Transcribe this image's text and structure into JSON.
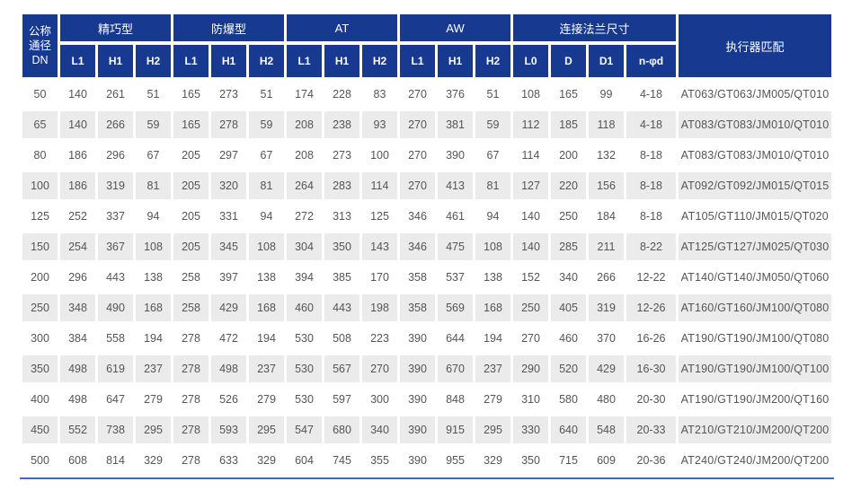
{
  "colors": {
    "header_bg": "#17398F",
    "header_text": "#FFFFFF",
    "stripe_bg": "#EBEBEB",
    "row_text": "#555555",
    "bottom_line": "#4468BD",
    "page_bg": "#FFFFFF"
  },
  "table": {
    "dn_header": "公称\n通径\nDN",
    "actuator_header": "执行器匹配",
    "groups": [
      {
        "label": "精巧型",
        "cols": [
          "L1",
          "H1",
          "H2"
        ]
      },
      {
        "label": "防爆型",
        "cols": [
          "L1",
          "H1",
          "H2"
        ]
      },
      {
        "label": "AT",
        "cols": [
          "L1",
          "H1",
          "H2"
        ]
      },
      {
        "label": "AW",
        "cols": [
          "L1",
          "H1",
          "H2"
        ]
      },
      {
        "label": "连接法兰尺寸",
        "cols": [
          "L0",
          "D",
          "D1",
          "n-φd"
        ]
      }
    ],
    "rows": [
      {
        "dn": "50",
        "values": [
          "140",
          "261",
          "51",
          "165",
          "273",
          "51",
          "174",
          "228",
          "83",
          "270",
          "376",
          "51",
          "108",
          "165",
          "99",
          "4-18"
        ],
        "actuator": "AT063/GT063/JM005/QT010"
      },
      {
        "dn": "65",
        "values": [
          "140",
          "266",
          "59",
          "165",
          "278",
          "59",
          "208",
          "238",
          "93",
          "270",
          "381",
          "59",
          "112",
          "185",
          "118",
          "4-18"
        ],
        "actuator": "AT083/GT083/JM010/QT010"
      },
      {
        "dn": "80",
        "values": [
          "186",
          "296",
          "67",
          "205",
          "297",
          "67",
          "208",
          "273",
          "100",
          "270",
          "390",
          "67",
          "114",
          "200",
          "132",
          "8-18"
        ],
        "actuator": "AT083/GT083/JM010/QT010"
      },
      {
        "dn": "100",
        "values": [
          "186",
          "319",
          "81",
          "205",
          "320",
          "81",
          "264",
          "283",
          "114",
          "270",
          "413",
          "81",
          "127",
          "220",
          "156",
          "8-18"
        ],
        "actuator": "AT092/GT092/JM015/QT015"
      },
      {
        "dn": "125",
        "values": [
          "252",
          "337",
          "94",
          "205",
          "331",
          "94",
          "272",
          "313",
          "125",
          "346",
          "461",
          "94",
          "140",
          "250",
          "184",
          "8-18"
        ],
        "actuator": "AT105/GT110/JM015/QT020"
      },
      {
        "dn": "150",
        "values": [
          "254",
          "367",
          "108",
          "205",
          "345",
          "108",
          "304",
          "350",
          "143",
          "346",
          "475",
          "108",
          "140",
          "285",
          "211",
          "8-22"
        ],
        "actuator": "AT125/GT127/JM025/QT030"
      },
      {
        "dn": "200",
        "values": [
          "296",
          "443",
          "138",
          "258",
          "397",
          "138",
          "394",
          "385",
          "170",
          "358",
          "537",
          "138",
          "152",
          "340",
          "266",
          "12-22"
        ],
        "actuator": "AT140/GT140/JM050/QT060"
      },
      {
        "dn": "250",
        "values": [
          "348",
          "490",
          "168",
          "258",
          "429",
          "168",
          "460",
          "443",
          "198",
          "358",
          "569",
          "168",
          "250",
          "405",
          "319",
          "12-26"
        ],
        "actuator": "AT160/GT160/JM100/QT080"
      },
      {
        "dn": "300",
        "values": [
          "384",
          "558",
          "194",
          "278",
          "472",
          "194",
          "530",
          "508",
          "223",
          "390",
          "644",
          "194",
          "270",
          "460",
          "370",
          "16-26"
        ],
        "actuator": "AT190/GT190/JM100/QT080"
      },
      {
        "dn": "350",
        "values": [
          "498",
          "619",
          "237",
          "278",
          "498",
          "237",
          "530",
          "567",
          "270",
          "390",
          "670",
          "237",
          "290",
          "520",
          "429",
          "16-30"
        ],
        "actuator": "AT190/GT190/JM100/QT100"
      },
      {
        "dn": "400",
        "values": [
          "498",
          "647",
          "279",
          "278",
          "526",
          "279",
          "530",
          "597",
          "300",
          "390",
          "848",
          "279",
          "310",
          "580",
          "480",
          "20-30"
        ],
        "actuator": "AT190/GT190/JM200/QT160"
      },
      {
        "dn": "450",
        "values": [
          "552",
          "738",
          "295",
          "278",
          "593",
          "295",
          "547",
          "680",
          "340",
          "390",
          "915",
          "295",
          "330",
          "640",
          "548",
          "20-33"
        ],
        "actuator": "AT210/GT210/JM200/QT200"
      },
      {
        "dn": "500",
        "values": [
          "608",
          "814",
          "329",
          "278",
          "633",
          "329",
          "604",
          "745",
          "355",
          "390",
          "955",
          "329",
          "350",
          "715",
          "609",
          "20-36"
        ],
        "actuator": "AT240/GT240/JM200/QT200"
      }
    ]
  }
}
